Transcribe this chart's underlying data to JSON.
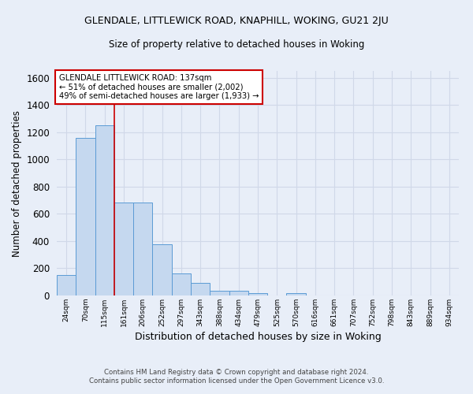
{
  "title": "GLENDALE, LITTLEWICK ROAD, KNAPHILL, WOKING, GU21 2JU",
  "subtitle": "Size of property relative to detached houses in Woking",
  "xlabel": "Distribution of detached houses by size in Woking",
  "ylabel": "Number of detached properties",
  "footer_line1": "Contains HM Land Registry data © Crown copyright and database right 2024.",
  "footer_line2": "Contains public sector information licensed under the Open Government Licence v3.0.",
  "categories": [
    "24sqm",
    "70sqm",
    "115sqm",
    "161sqm",
    "206sqm",
    "252sqm",
    "297sqm",
    "343sqm",
    "388sqm",
    "434sqm",
    "479sqm",
    "525sqm",
    "570sqm",
    "616sqm",
    "661sqm",
    "707sqm",
    "752sqm",
    "798sqm",
    "843sqm",
    "889sqm",
    "934sqm"
  ],
  "values": [
    150,
    1160,
    1250,
    685,
    685,
    375,
    165,
    90,
    37,
    37,
    18,
    0,
    18,
    0,
    0,
    0,
    0,
    0,
    0,
    0,
    0
  ],
  "bar_color": "#c5d8ef",
  "bar_edge_color": "#5b9bd5",
  "ylim": [
    0,
    1650
  ],
  "yticks": [
    0,
    200,
    400,
    600,
    800,
    1000,
    1200,
    1400,
    1600
  ],
  "vline_x": 2.5,
  "annotation_line1": "GLENDALE LITTLEWICK ROAD: 137sqm",
  "annotation_line2": "← 51% of detached houses are smaller (2,002)",
  "annotation_line3": "49% of semi-detached houses are larger (1,933) →",
  "vline_color": "#cc0000",
  "background_color": "#e8eef8",
  "grid_color": "#d0d8e8",
  "ann_box_color": "#cc0000"
}
